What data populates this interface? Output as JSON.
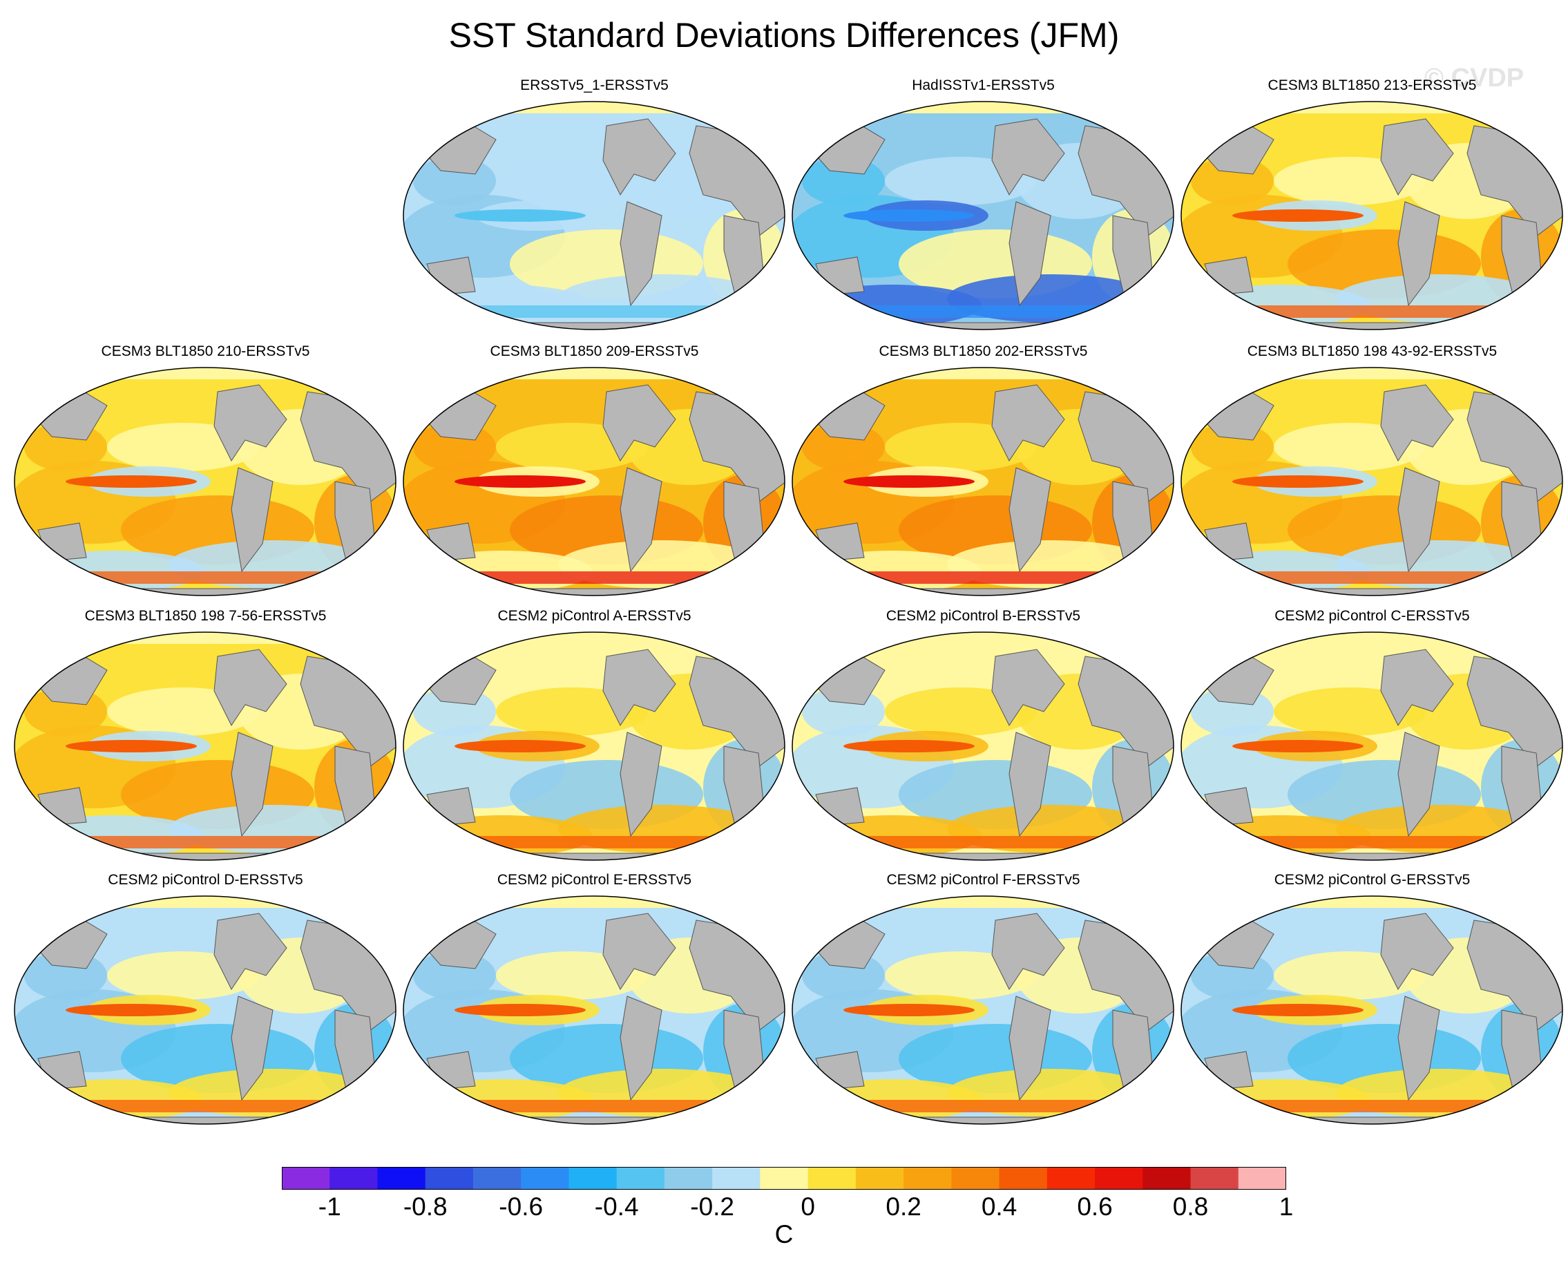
{
  "title": "SST Standard Deviations Differences (JFM)",
  "watermark": "© CVDP",
  "panels": [
    {
      "label": "ERSSTv5_1-ERSSTv5",
      "pattern": "cool"
    },
    {
      "label": "HadISSTv1-ERSSTv5",
      "pattern": "cool-strong"
    },
    {
      "label": "CESM3 BLT1850 213-ERSSTv5",
      "pattern": "warm"
    },
    {
      "label": "CESM3 BLT1850 210-ERSSTv5",
      "pattern": "warm"
    },
    {
      "label": "CESM3 BLT1850 209-ERSSTv5",
      "pattern": "warm-strong"
    },
    {
      "label": "CESM3 BLT1850 202-ERSSTv5",
      "pattern": "warm-strong"
    },
    {
      "label": "CESM3 BLT1850 198 43-92-ERSSTv5",
      "pattern": "warm"
    },
    {
      "label": "CESM3 BLT1850 198 7-56-ERSSTv5",
      "pattern": "warm"
    },
    {
      "label": "CESM2 piControl A-ERSSTv5",
      "pattern": "mixed"
    },
    {
      "label": "CESM2 piControl B-ERSSTv5",
      "pattern": "mixed"
    },
    {
      "label": "CESM2 piControl C-ERSSTv5",
      "pattern": "mixed"
    },
    {
      "label": "CESM2 piControl D-ERSSTv5",
      "pattern": "mixed-cool"
    },
    {
      "label": "CESM2 piControl E-ERSSTv5",
      "pattern": "mixed-cool"
    },
    {
      "label": "CESM2 piControl F-ERSSTv5",
      "pattern": "mixed-cool"
    },
    {
      "label": "CESM2 piControl G-ERSSTv5",
      "pattern": "mixed-cool"
    }
  ],
  "colorbar": {
    "colors": [
      "#8a2be2",
      "#4b1be8",
      "#0f0ff5",
      "#2e4fe0",
      "#3b6fe0",
      "#2b8cf5",
      "#1fb0f5",
      "#55c4f0",
      "#8fccec",
      "#b8e0f7",
      "#fff8a0",
      "#fce23a",
      "#f9bd1a",
      "#f9a20f",
      "#f7870a",
      "#f55a05",
      "#f52a05",
      "#e8140a",
      "#c40a0a",
      "#d94545",
      "#fbb3b3"
    ],
    "ticks": [
      "-1",
      "-0.8",
      "-0.6",
      "-0.4",
      "-0.2",
      "0",
      "0.2",
      "0.4",
      "0.6",
      "0.8",
      "1"
    ],
    "unit": "C"
  }
}
